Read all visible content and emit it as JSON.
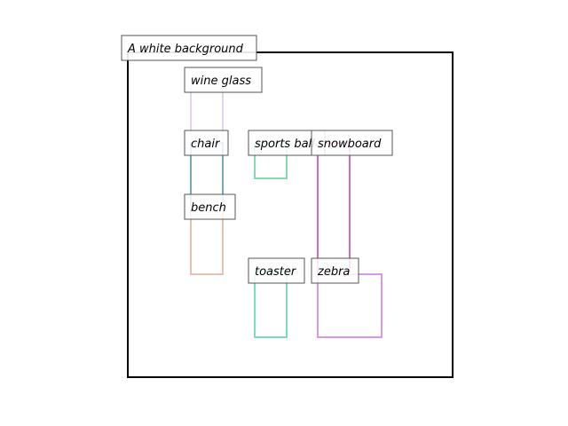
{
  "title": "A white background",
  "frame_color": "#000000",
  "boxes": [
    {
      "label": "wine glass",
      "color": "#e4d4ec",
      "order": 0
    },
    {
      "label": "chair",
      "color": "#7aa8b8",
      "order": 1
    },
    {
      "label": "bench",
      "color": "#e8c0b0",
      "order": 2
    },
    {
      "label": "sports ball",
      "color": "#88d8b0",
      "order": 3
    },
    {
      "label": "snowboard",
      "color": "#d868c0",
      "order": 4
    },
    {
      "label": "toaster",
      "color": "#78e0b8",
      "order": 5
    },
    {
      "label": "zebra",
      "color": "#d898e8",
      "order": 6
    }
  ]
}
